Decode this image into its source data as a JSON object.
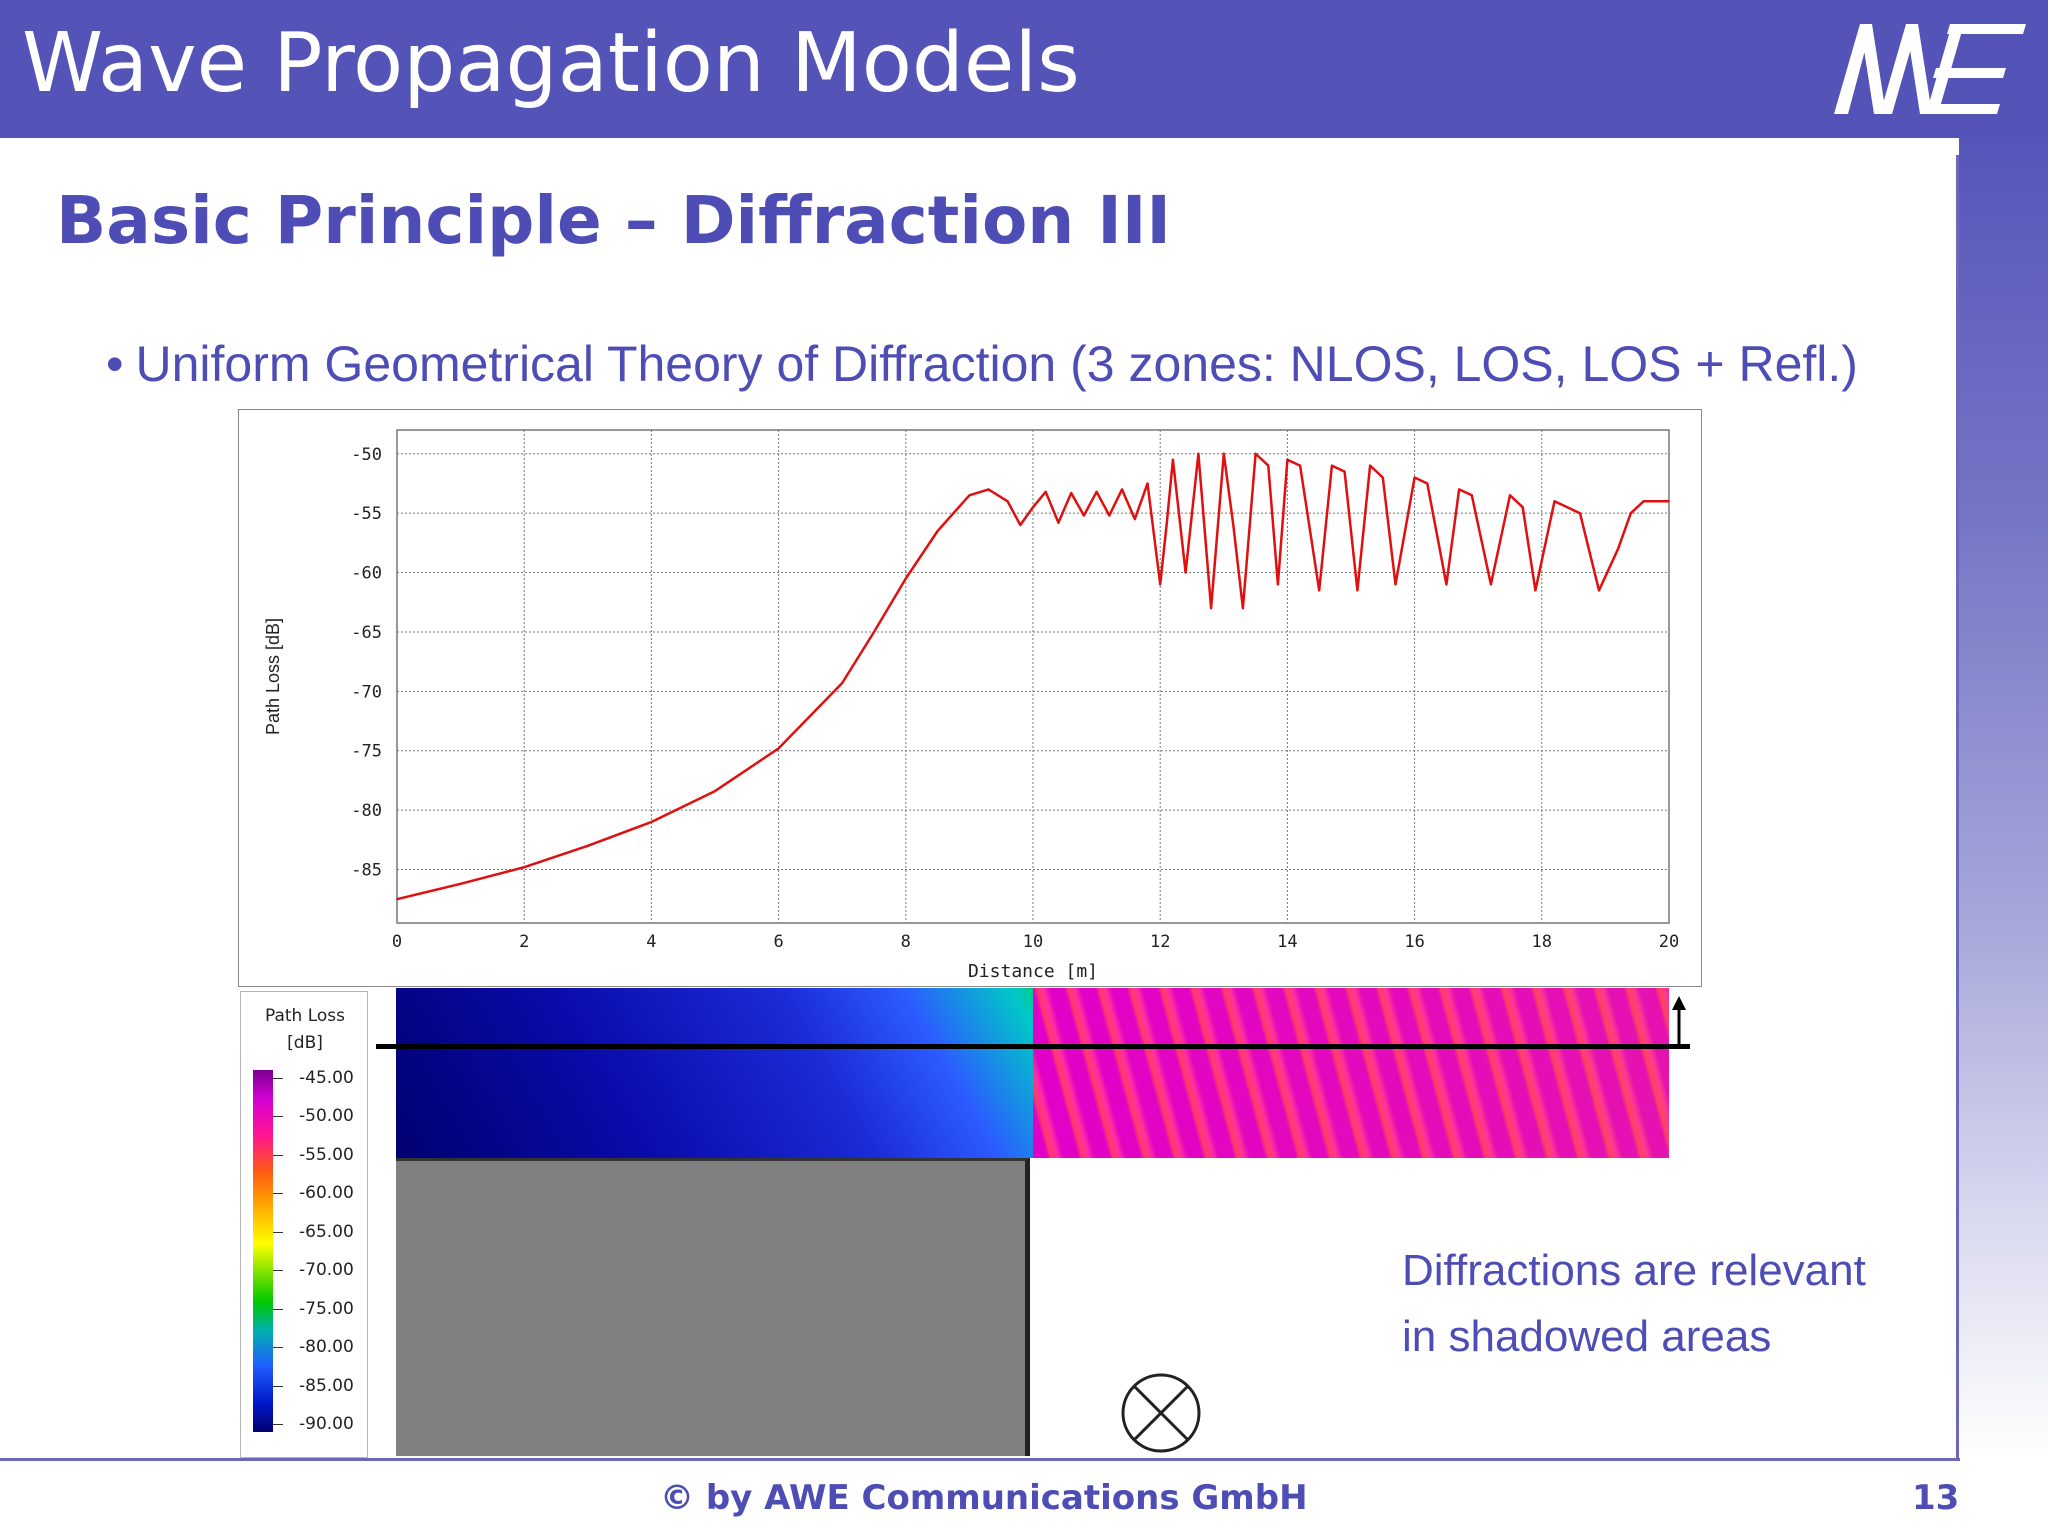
{
  "header": {
    "title": "Wave Propagation Models",
    "logo_text": "AWE"
  },
  "slide": {
    "title": "Basic Principle – Diffraction III",
    "bullet_marker": "•",
    "bullet": "Uniform Geometrical Theory of Diffraction (3 zones: NLOS, LOS, LOS + Refl.)"
  },
  "chart_data": {
    "type": "line",
    "title": "",
    "xlabel": "Distance [m]",
    "ylabel": "Path Loss [dB]",
    "xlim": [
      0,
      20
    ],
    "ylim": [
      -89.5,
      -48
    ],
    "x_ticks": [
      "0",
      "2",
      "4",
      "6",
      "8",
      "10",
      "12",
      "14",
      "16",
      "18",
      "20"
    ],
    "y_ticks": [
      "-50",
      "-55",
      "-60",
      "-65",
      "-70",
      "-75",
      "-80",
      "-85"
    ],
    "grid": true,
    "line_color": "#e01010",
    "series": [
      {
        "x": [
          0,
          1,
          2,
          3,
          4,
          5,
          6,
          7,
          7.5,
          8,
          8.5,
          9,
          9.3,
          9.6,
          9.8,
          10,
          10.2,
          10.4,
          10.6,
          10.8,
          11,
          11.2,
          11.4,
          11.6,
          11.8,
          12,
          12.1,
          12.2,
          12.4,
          12.6,
          12.8,
          13,
          13.15,
          13.3,
          13.5,
          13.7,
          13.85,
          14,
          14.2,
          14.5,
          14.7,
          14.9,
          15.1,
          15.3,
          15.5,
          15.7,
          16,
          16.2,
          16.5,
          16.7,
          16.9,
          17.2,
          17.5,
          17.7,
          17.9,
          18.2,
          18.6,
          18.9,
          19.2,
          19.4,
          19.6,
          19.8,
          20
        ],
        "y": [
          -87.5,
          -86.2,
          -84.8,
          -83,
          -81,
          -78.4,
          -74.8,
          -69.3,
          -65,
          -60.5,
          -56.5,
          -53.5,
          -53,
          -54,
          -56,
          -54.5,
          -53.2,
          -55.8,
          -53.3,
          -55.2,
          -53.2,
          -55.2,
          -53.0,
          -55.5,
          -52.5,
          -61,
          -56,
          -50.5,
          -60,
          -50,
          -63,
          -50,
          -56,
          -63,
          -50,
          -51,
          -61,
          -50.5,
          -51,
          -61.5,
          -51,
          -51.5,
          -61.5,
          -51,
          -52,
          -61,
          -52,
          -52.5,
          -61,
          -53,
          -53.5,
          -61,
          -53.5,
          -54.5,
          -61.5,
          -54,
          -55,
          -61.5,
          -58,
          -55,
          -54,
          -54,
          -54
        ]
      }
    ]
  },
  "legend": {
    "title_line1": "Path Loss",
    "title_line2": "[dB]",
    "values": [
      "-45.00",
      "-50.00",
      "-55.00",
      "-60.00",
      "-65.00",
      "-70.00",
      "-75.00",
      "-80.00",
      "-85.00",
      "-90.00"
    ]
  },
  "note": {
    "line1": "Diffractions are relevant",
    "line2": "in shadowed areas"
  },
  "footer": {
    "copyright": "© by AWE Communications GmbH",
    "page": "13"
  }
}
